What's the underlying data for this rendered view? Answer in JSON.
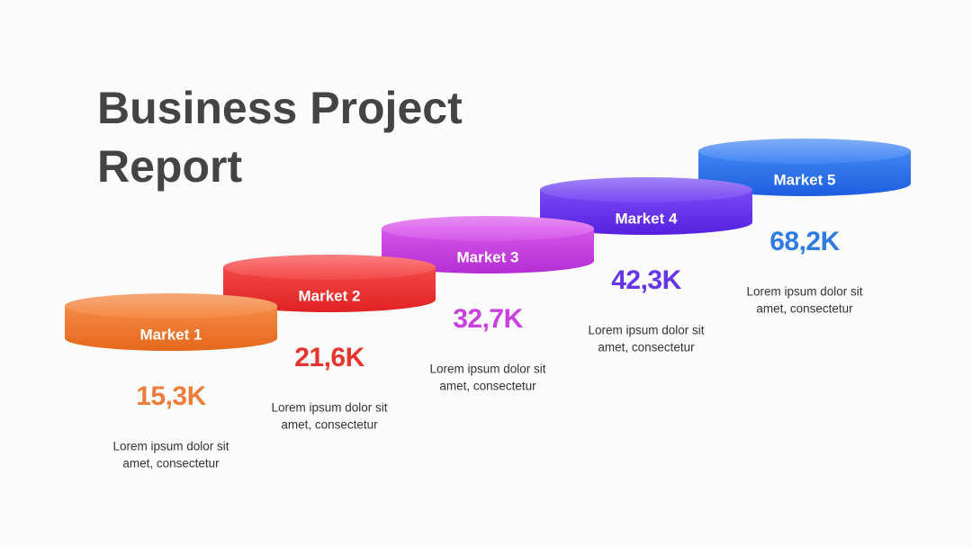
{
  "title": [
    "Business Project",
    "Report"
  ],
  "markets": [
    {
      "label": "Market 1",
      "value": "15,3K",
      "description": [
        "Lorem ipsum dolor sit",
        "amet, consectetur"
      ]
    },
    {
      "label": "Market 2",
      "value": "21,6K",
      "description": [
        "Lorem ipsum dolor sit",
        "amet, consectetur"
      ]
    },
    {
      "label": "Market 3",
      "value": "32,7K",
      "description": [
        "Lorem ipsum dolor sit",
        "amet, consectetur"
      ]
    },
    {
      "label": "Market 4",
      "value": "42,3K",
      "description": [
        "Lorem ipsum dolor sit",
        "amet, consectetur"
      ]
    },
    {
      "label": "Market 5",
      "value": "68,2K",
      "description": [
        "Lorem ipsum dolor sit",
        "amet, consectetur"
      ]
    }
  ]
}
